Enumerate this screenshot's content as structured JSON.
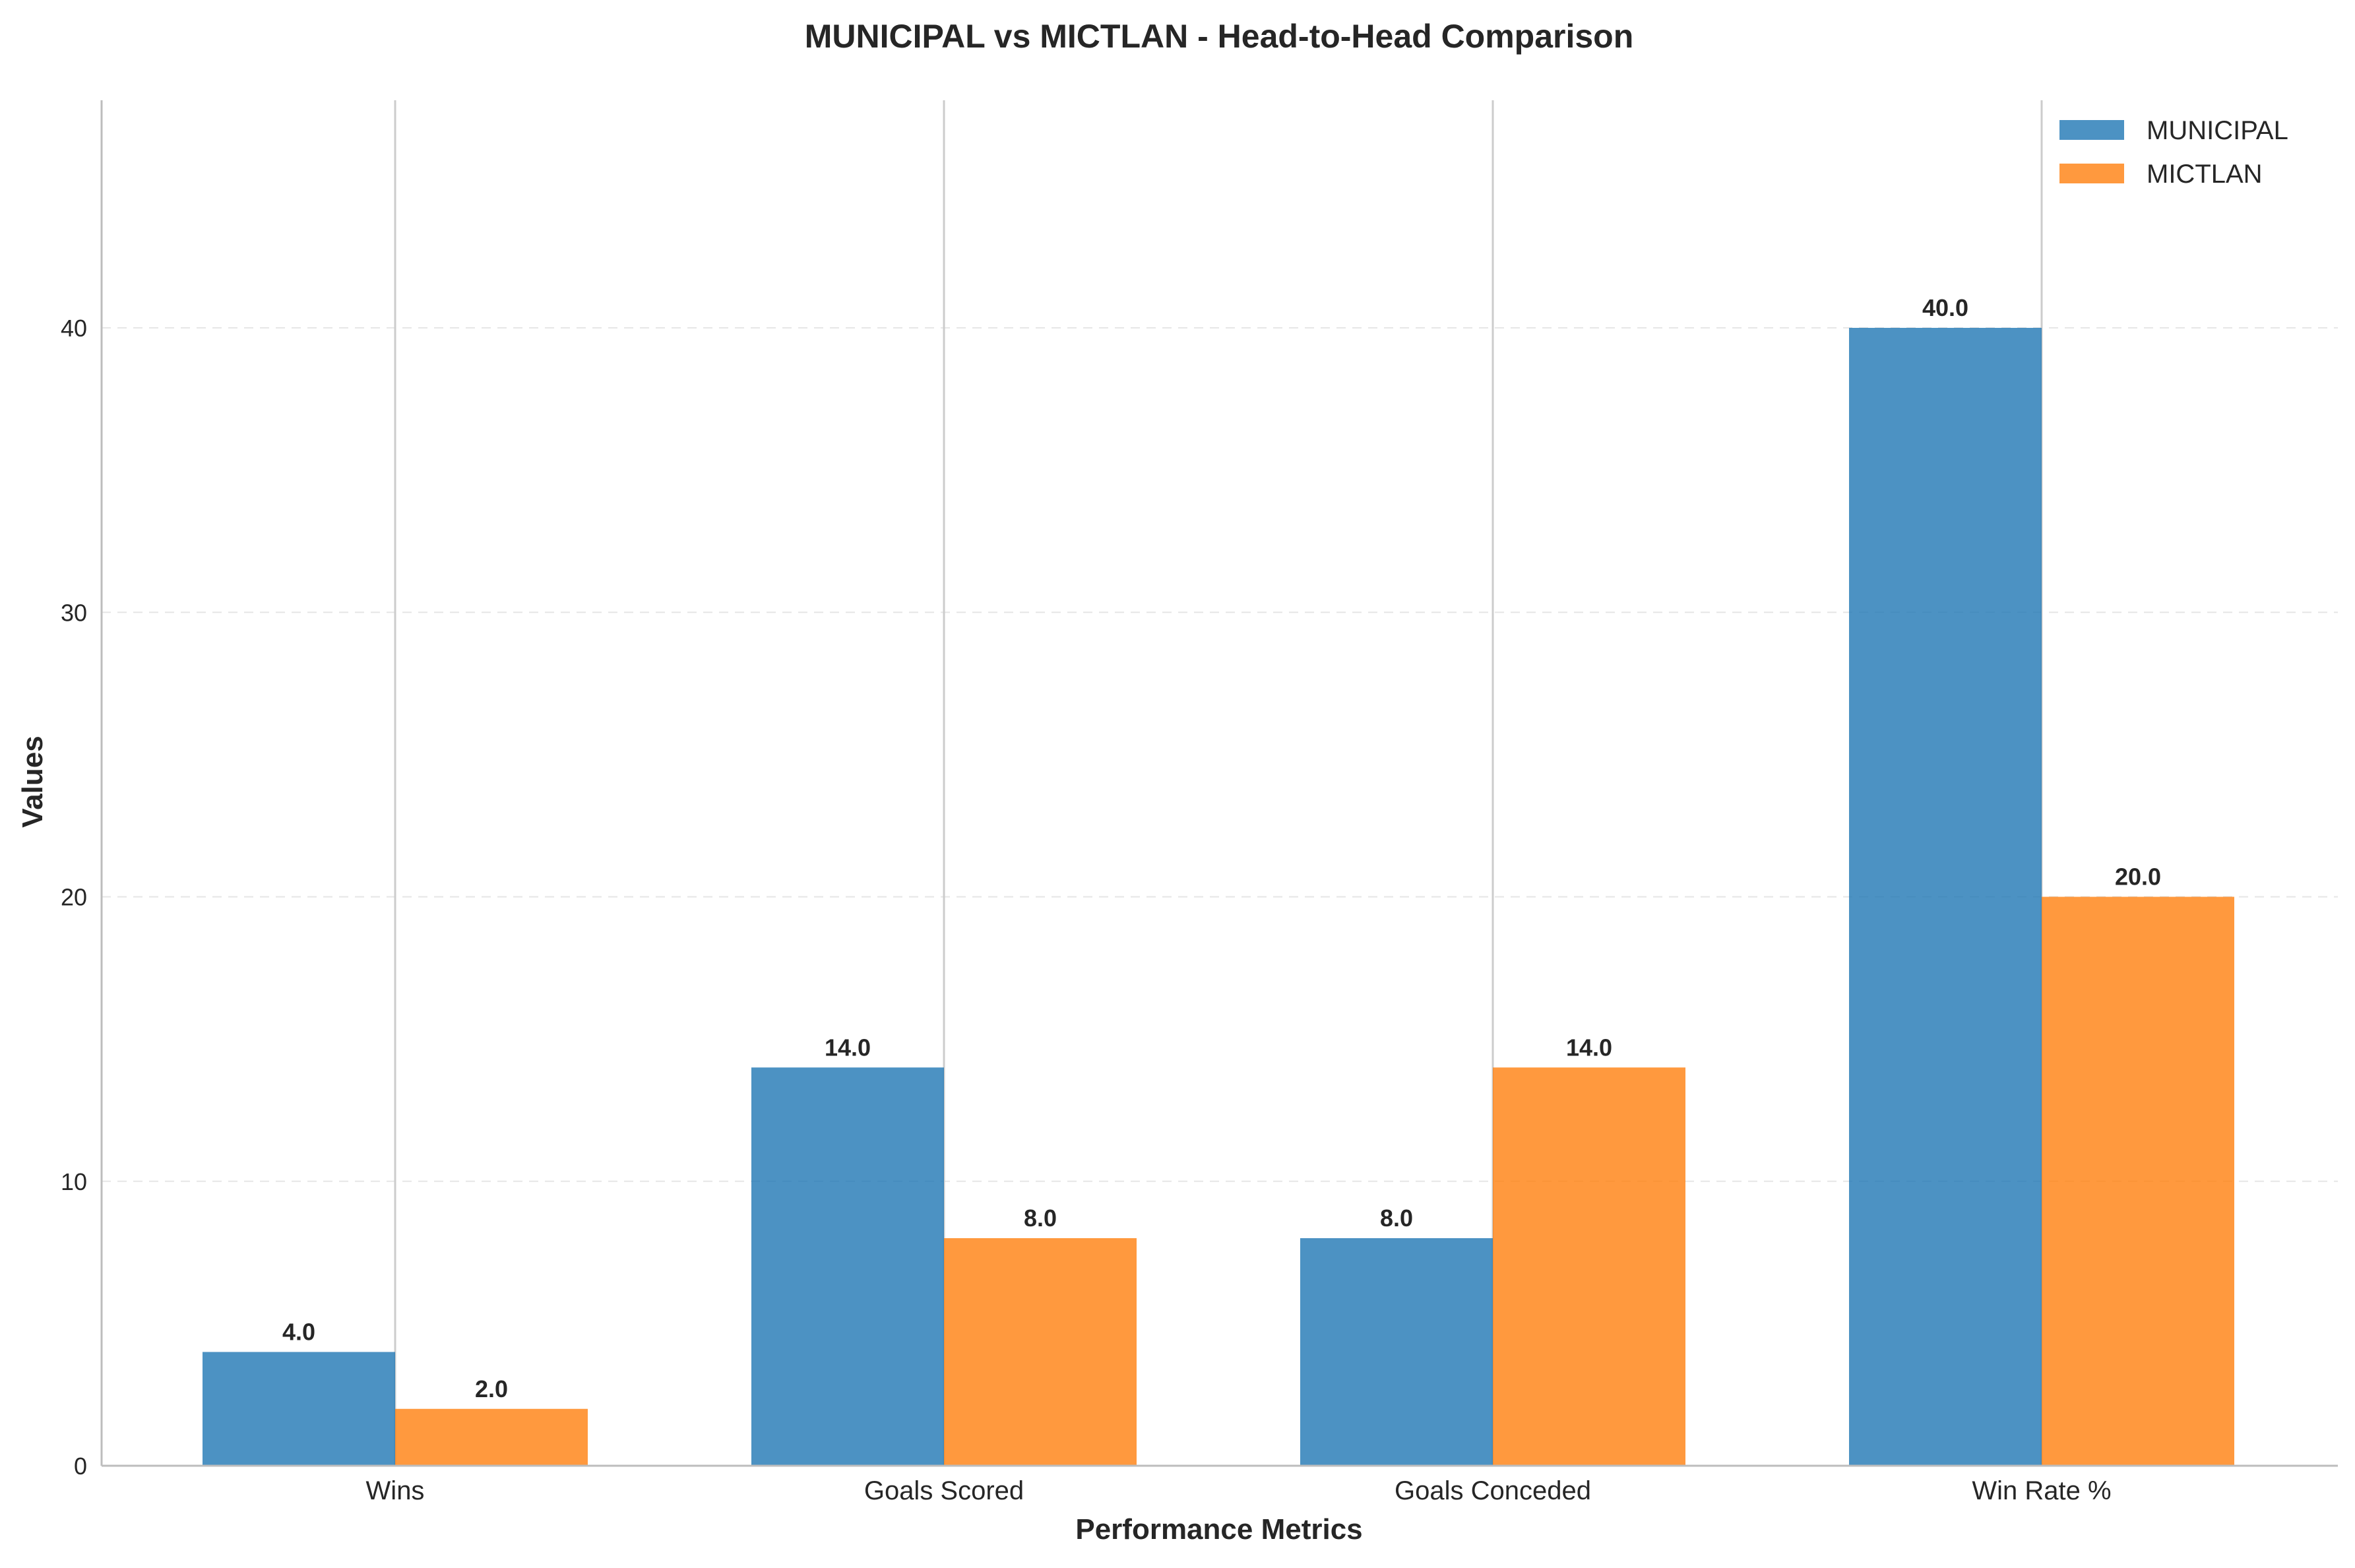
{
  "chart_data": {
    "type": "bar",
    "title": "MUNICIPAL vs MICTLAN - Head-to-Head Comparison",
    "xlabel": "Performance Metrics",
    "ylabel": "Values",
    "categories": [
      "Wins",
      "Goals Scored",
      "Goals Conceded",
      "Win Rate %"
    ],
    "series": [
      {
        "name": "MUNICIPAL",
        "values": [
          4.0,
          14.0,
          8.0,
          40.0
        ],
        "color": "#1f77b4",
        "labels": [
          "4.0",
          "14.0",
          "8.0",
          "40.0"
        ]
      },
      {
        "name": "MICTLAN",
        "values": [
          2.0,
          8.0,
          14.0,
          20.0
        ],
        "color": "#ff7f0e",
        "labels": [
          "2.0",
          "8.0",
          "14.0",
          "20.0"
        ]
      }
    ],
    "ylim": [
      0,
      48
    ],
    "yticks": [
      0,
      10,
      20,
      30,
      40
    ],
    "ytick_labels": [
      "0",
      "10",
      "20",
      "30",
      "40"
    ],
    "grid": "y-dashed",
    "legend": "top-right"
  }
}
